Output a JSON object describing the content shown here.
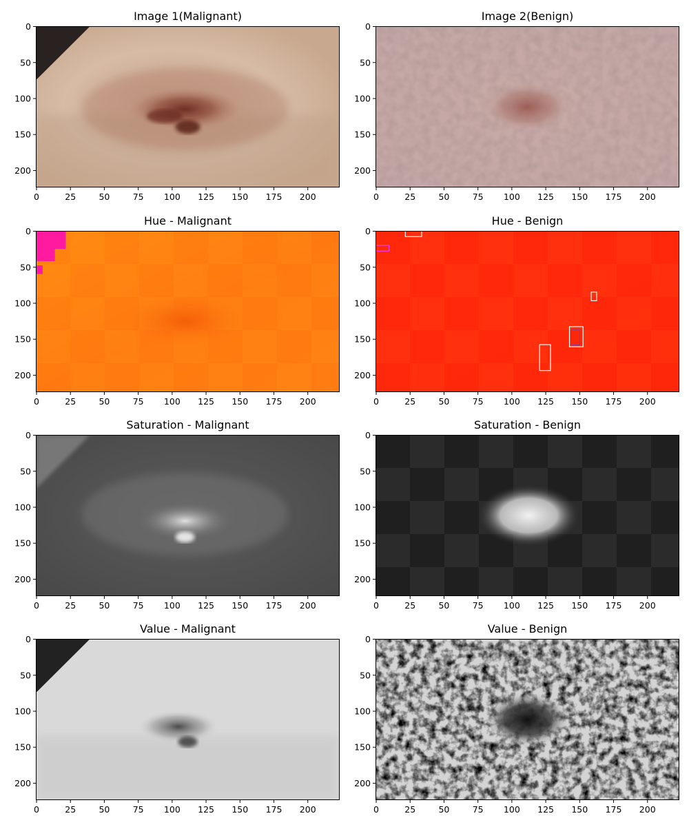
{
  "figure": {
    "panels": [
      {
        "title": "Image 1(Malignant)",
        "kind": "rgb",
        "class": "malignant"
      },
      {
        "title": "Image 2(Benign)",
        "kind": "rgb",
        "class": "benign"
      },
      {
        "title": "Hue - Malignant",
        "kind": "hue",
        "class": "malignant"
      },
      {
        "title": "Hue - Benign",
        "kind": "hue",
        "class": "benign"
      },
      {
        "title": "Saturation - Malignant",
        "kind": "saturation",
        "class": "malignant"
      },
      {
        "title": "Saturation - Benign",
        "kind": "saturation",
        "class": "benign"
      },
      {
        "title": "Value - Malignant",
        "kind": "value",
        "class": "malignant"
      },
      {
        "title": "Value - Benign",
        "kind": "value",
        "class": "benign"
      }
    ],
    "x_ticks": [
      "0",
      "25",
      "50",
      "75",
      "100",
      "125",
      "150",
      "175",
      "200"
    ],
    "y_ticks": [
      "0",
      "50",
      "100",
      "150",
      "200"
    ],
    "image_extent": {
      "width": 224,
      "height": 224
    }
  }
}
